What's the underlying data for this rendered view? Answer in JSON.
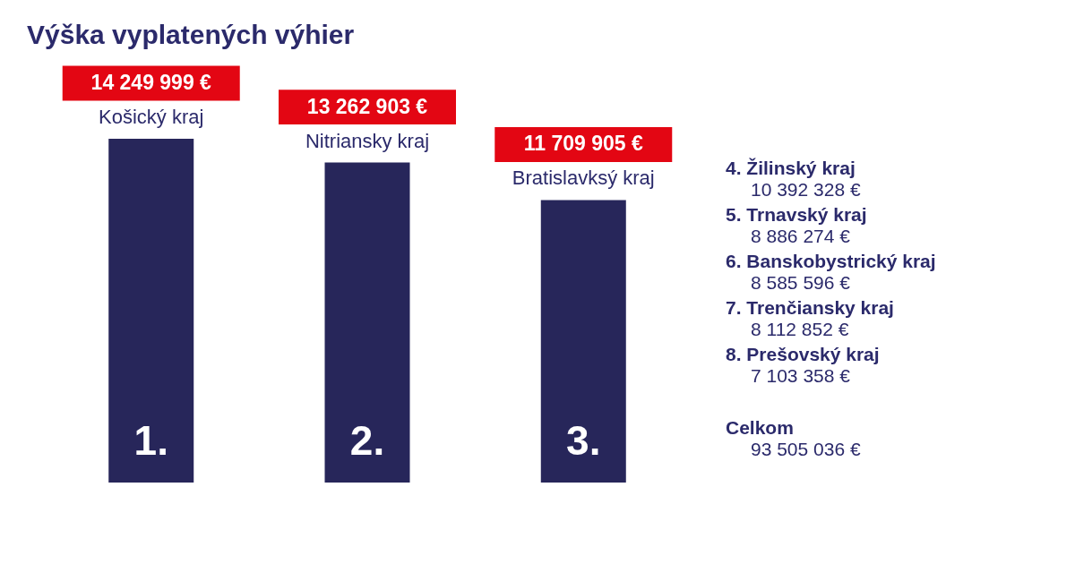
{
  "chart_data": [
    {
      "type": "bar",
      "title": "Výška vyplatených výhier",
      "categories": [
        "Košický kraj",
        "Nitriansky kraj",
        "Bratislavksý kraj"
      ],
      "values": [
        14249999,
        13262903,
        11709905
      ],
      "value_labels": [
        "14 249 999 €",
        "13 262 903 €",
        "11 709 905 €"
      ],
      "color": "#27265a",
      "annotations": [
        "1.",
        "2.",
        "3."
      ]
    },
    {
      "type": "other",
      "annotations": [
        "4. Žilinský kraj",
        "10 392 328 €",
        "5. Trnavský kraj",
        "8 886 274 €",
        "6. Banskobystrický kraj",
        "8 585 596 €",
        "7. Trenčiansky kraj",
        "8 112 852 €",
        "8. Prešovský kraj",
        "7 103 358 €",
        "Celkom",
        "93 505 036 €"
      ]
    }
  ]
}
